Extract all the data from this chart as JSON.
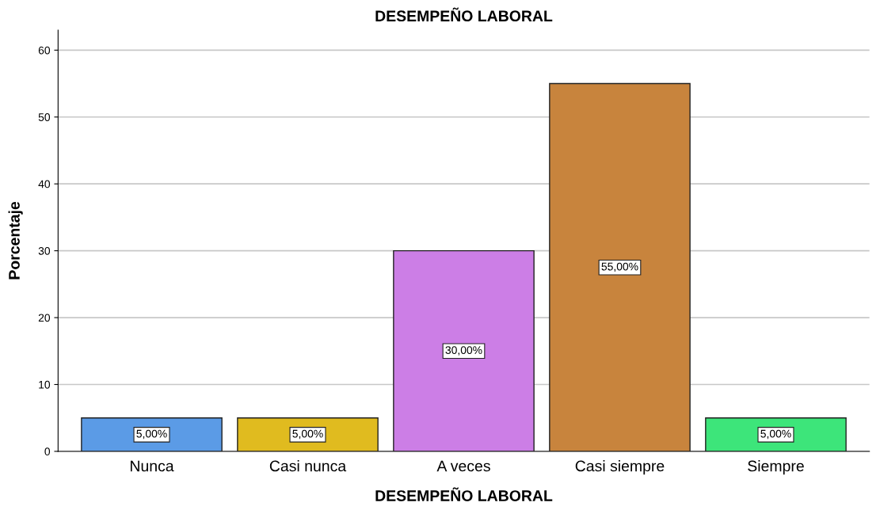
{
  "chart_data": {
    "type": "bar",
    "title": "DESEMPEÑO LABORAL",
    "xlabel": "DESEMPEÑO LABORAL",
    "ylabel": "Porcentaje",
    "categories": [
      "Nunca",
      "Casi nunca",
      "A veces",
      "Casi siempre",
      "Siempre"
    ],
    "values": [
      5,
      5,
      30,
      55,
      5
    ],
    "colors": [
      "#5b9be6",
      "#e0bb1f",
      "#cc7ee6",
      "#c8843d",
      "#3de57a"
    ],
    "value_labels": [
      "5,00%",
      "5,00%",
      "30,00%",
      "55,00%",
      "5,00%"
    ],
    "ylim": [
      0,
      63
    ],
    "yticks": [
      0,
      10,
      20,
      30,
      40,
      50,
      60
    ],
    "grid": "y"
  }
}
